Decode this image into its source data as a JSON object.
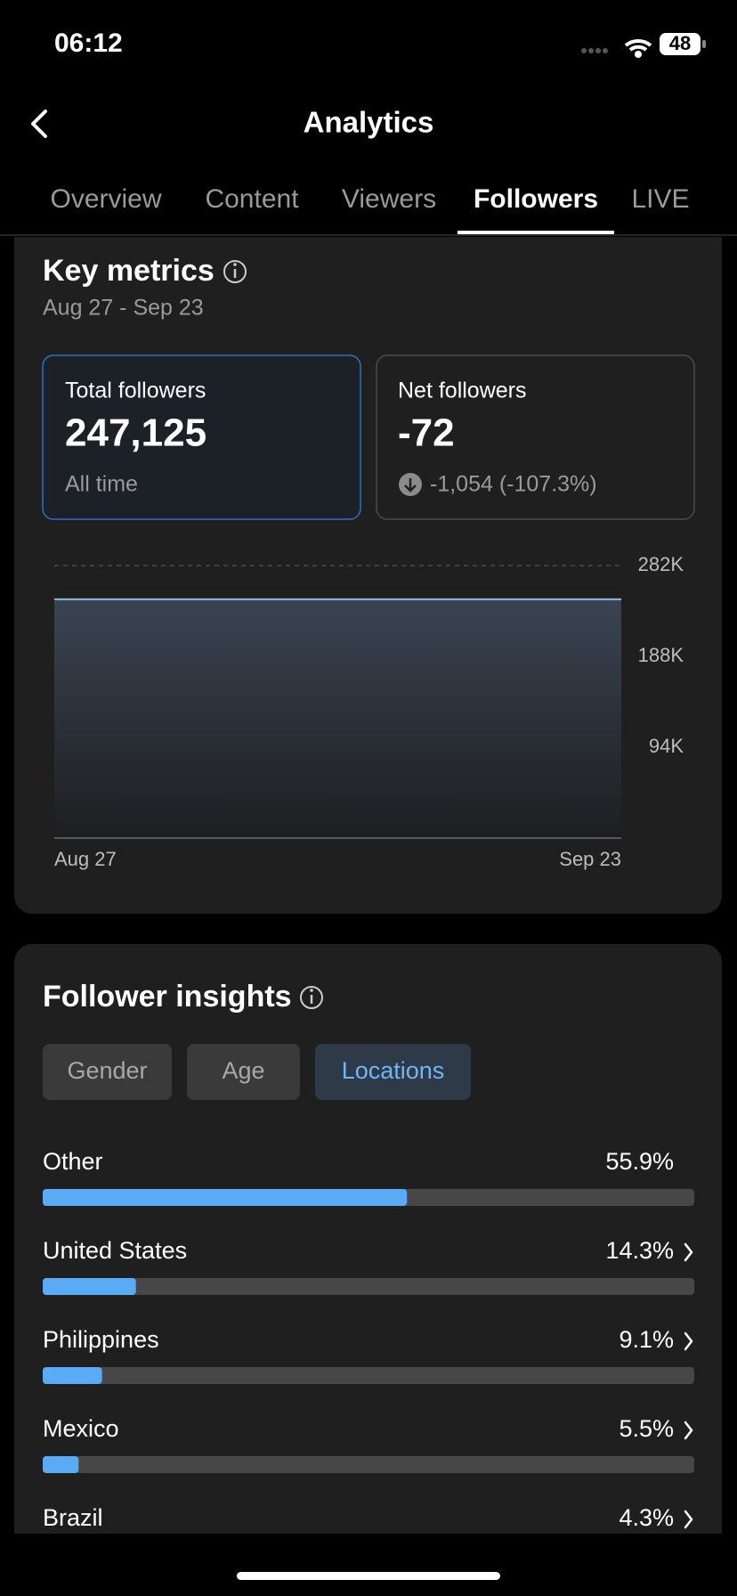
{
  "status_bar": {
    "time": "06:12",
    "battery": "48"
  },
  "header": {
    "title": "Analytics"
  },
  "tabs": {
    "items": [
      "Overview",
      "Content",
      "Viewers",
      "Followers",
      "LIVE"
    ],
    "active": 3
  },
  "key_metrics": {
    "title": "Key metrics",
    "date_range": "Aug 27 - Sep 23",
    "cards": [
      {
        "label": "Total followers",
        "value": "247,125",
        "sub": "All time"
      },
      {
        "label": "Net followers",
        "value": "-72",
        "sub": "-1,054 (-107.3%)"
      }
    ]
  },
  "follower_insights": {
    "title": "Follower insights",
    "filters": [
      "Gender",
      "Age",
      "Locations"
    ],
    "active_filter": 2
  },
  "chart_data": [
    {
      "type": "area",
      "x": [
        "Aug 27",
        "Sep 23"
      ],
      "series": [
        {
          "color": "#8cbbe9",
          "values": [
            247125,
            247125
          ]
        }
      ],
      "ylim": [
        0,
        282000
      ],
      "yticks": [
        {
          "value": 94000,
          "label": "94K"
        },
        {
          "value": 188000,
          "label": "188K"
        },
        {
          "value": 282000,
          "label": "282K"
        }
      ],
      "grid": true
    },
    {
      "type": "hbar",
      "categories": [
        "Other",
        "United States",
        "Philippines",
        "Mexico",
        "Brazil"
      ],
      "values": [
        55.9,
        14.3,
        9.1,
        5.5,
        4.3
      ],
      "value_labels": [
        "55.9%",
        "14.3%",
        "9.1%",
        "5.5%",
        "4.3%"
      ],
      "xlim": [
        0,
        100
      ],
      "color": "#5aabf5",
      "drill_down": [
        false,
        true,
        true,
        true,
        true
      ]
    }
  ]
}
